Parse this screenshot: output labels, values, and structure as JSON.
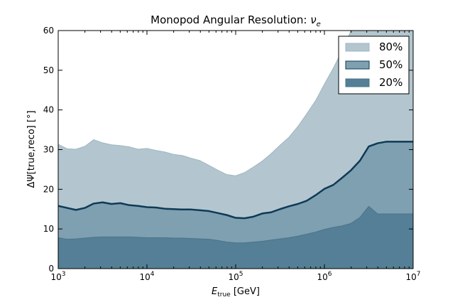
{
  "chart_data": {
    "type": "area",
    "title": "Monopod Angular Resolution: ",
    "title_symbol": "ν",
    "title_subscript": "e",
    "xlabel": {
      "symbol": "E",
      "subscript": "true",
      "unit": " [GeV]"
    },
    "ylabel": "ΔΨ[true,reco] [°]",
    "xscale": "log",
    "xlim": [
      1000,
      10000000
    ],
    "ylim": [
      0,
      60
    ],
    "yticks": [
      0,
      10,
      20,
      30,
      40,
      50,
      60
    ],
    "xticks": [
      {
        "value": 1000,
        "base": "10",
        "exp": "3"
      },
      {
        "value": 10000,
        "base": "10",
        "exp": "4"
      },
      {
        "value": 100000,
        "base": "10",
        "exp": "5"
      },
      {
        "value": 1000000,
        "base": "10",
        "exp": "6"
      },
      {
        "value": 10000000,
        "base": "10",
        "exp": "7"
      }
    ],
    "grid": false,
    "legend_position": "top-right",
    "x": [
      1000,
      1260,
      1585,
      1995,
      2512,
      3162,
      3981,
      5012,
      6310,
      7943,
      10000,
      12589,
      15849,
      19953,
      25119,
      31623,
      39811,
      50119,
      63096,
      79433,
      100000,
      125893,
      158489,
      199526,
      251189,
      316228,
      398107,
      501187,
      630957,
      794328,
      1000000,
      1258925,
      1584893,
      1995262,
      2511886,
      3162278,
      3981072,
      5011872,
      6309573,
      7943282,
      10000000
    ],
    "series": [
      {
        "name": "80%",
        "color": "#b3c6cf",
        "edge_color": "#9fb5c0",
        "values": [
          31.3,
          30.2,
          30.1,
          30.8,
          32.5,
          31.7,
          31.2,
          31.0,
          30.7,
          30.1,
          30.3,
          29.8,
          29.4,
          28.8,
          28.5,
          27.8,
          27.2,
          26.0,
          24.8,
          23.7,
          23.4,
          24.2,
          25.6,
          27.1,
          29.0,
          31.1,
          33.1,
          35.8,
          39.0,
          42.3,
          46.5,
          50.5,
          55.0,
          60.0,
          63.0,
          64.0,
          64.0,
          64.0,
          64.0,
          64.0,
          64.0
        ]
      },
      {
        "name": "50%",
        "color": "#7fa0b1",
        "edge_color": "#0e3a56",
        "values": [
          15.8,
          15.3,
          14.8,
          15.3,
          16.4,
          16.7,
          16.3,
          16.5,
          16.0,
          15.8,
          15.5,
          15.4,
          15.1,
          15.0,
          14.9,
          14.9,
          14.7,
          14.5,
          14.0,
          13.5,
          12.8,
          12.7,
          13.1,
          13.9,
          14.2,
          15.0,
          15.7,
          16.3,
          17.1,
          18.5,
          20.1,
          21.1,
          22.9,
          24.8,
          27.2,
          30.8,
          31.6,
          32.0,
          32.0,
          32.0,
          32.0
        ]
      },
      {
        "name": "20%",
        "color": "#547f96",
        "edge_color": "#4a7489",
        "values": [
          7.8,
          7.4,
          7.5,
          7.7,
          7.9,
          8.0,
          8.0,
          8.0,
          8.0,
          7.9,
          7.8,
          7.8,
          7.8,
          7.7,
          7.7,
          7.6,
          7.5,
          7.4,
          7.1,
          6.7,
          6.5,
          6.5,
          6.7,
          6.9,
          7.2,
          7.5,
          7.8,
          8.2,
          8.7,
          9.2,
          9.9,
          10.4,
          10.8,
          11.4,
          12.9,
          15.7,
          13.8,
          13.8,
          13.8,
          13.8,
          13.8
        ]
      }
    ]
  }
}
